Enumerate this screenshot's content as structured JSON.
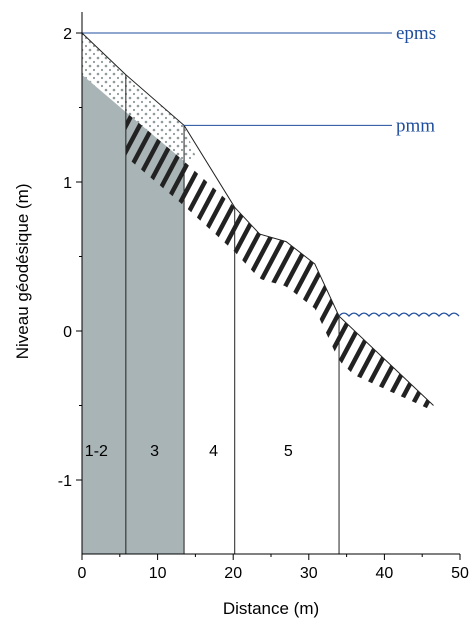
{
  "axes": {
    "x_title": "Distance (m)",
    "y_title": "Niveau géodésique (m)",
    "x_ticks": [
      "0",
      "10",
      "20",
      "30",
      "40",
      "50"
    ],
    "y_ticks": [
      "2",
      "1",
      "0",
      "-1"
    ]
  },
  "levels": {
    "epms": "epms",
    "pmm": "pmm"
  },
  "zones": [
    "1-2",
    "3",
    "4",
    "5"
  ],
  "colors": {
    "substrate": "#a9b4b6",
    "level_line": "#1f4e9c",
    "outline": "#222222"
  },
  "chart_data": {
    "type": "diagram",
    "xlim": [
      0,
      50
    ],
    "ylim": [
      -1.45,
      2.2
    ],
    "profile": [
      [
        0,
        2.0
      ],
      [
        5.8,
        1.72
      ],
      [
        13.5,
        1.38
      ],
      [
        20.2,
        0.83
      ],
      [
        23.5,
        0.65
      ],
      [
        27,
        0.6
      ],
      [
        30.8,
        0.45
      ],
      [
        34,
        0.1
      ],
      [
        46.5,
        -0.5
      ]
    ],
    "substrate_top": [
      [
        0,
        1.72
      ],
      [
        5.8,
        1.47
      ],
      [
        13.5,
        1.14
      ]
    ],
    "zone_boundaries": [
      5.8,
      13.5,
      20.2,
      34
    ],
    "epms_level": 2.0,
    "pmm_level": 1.38,
    "water_level": 0.1
  }
}
